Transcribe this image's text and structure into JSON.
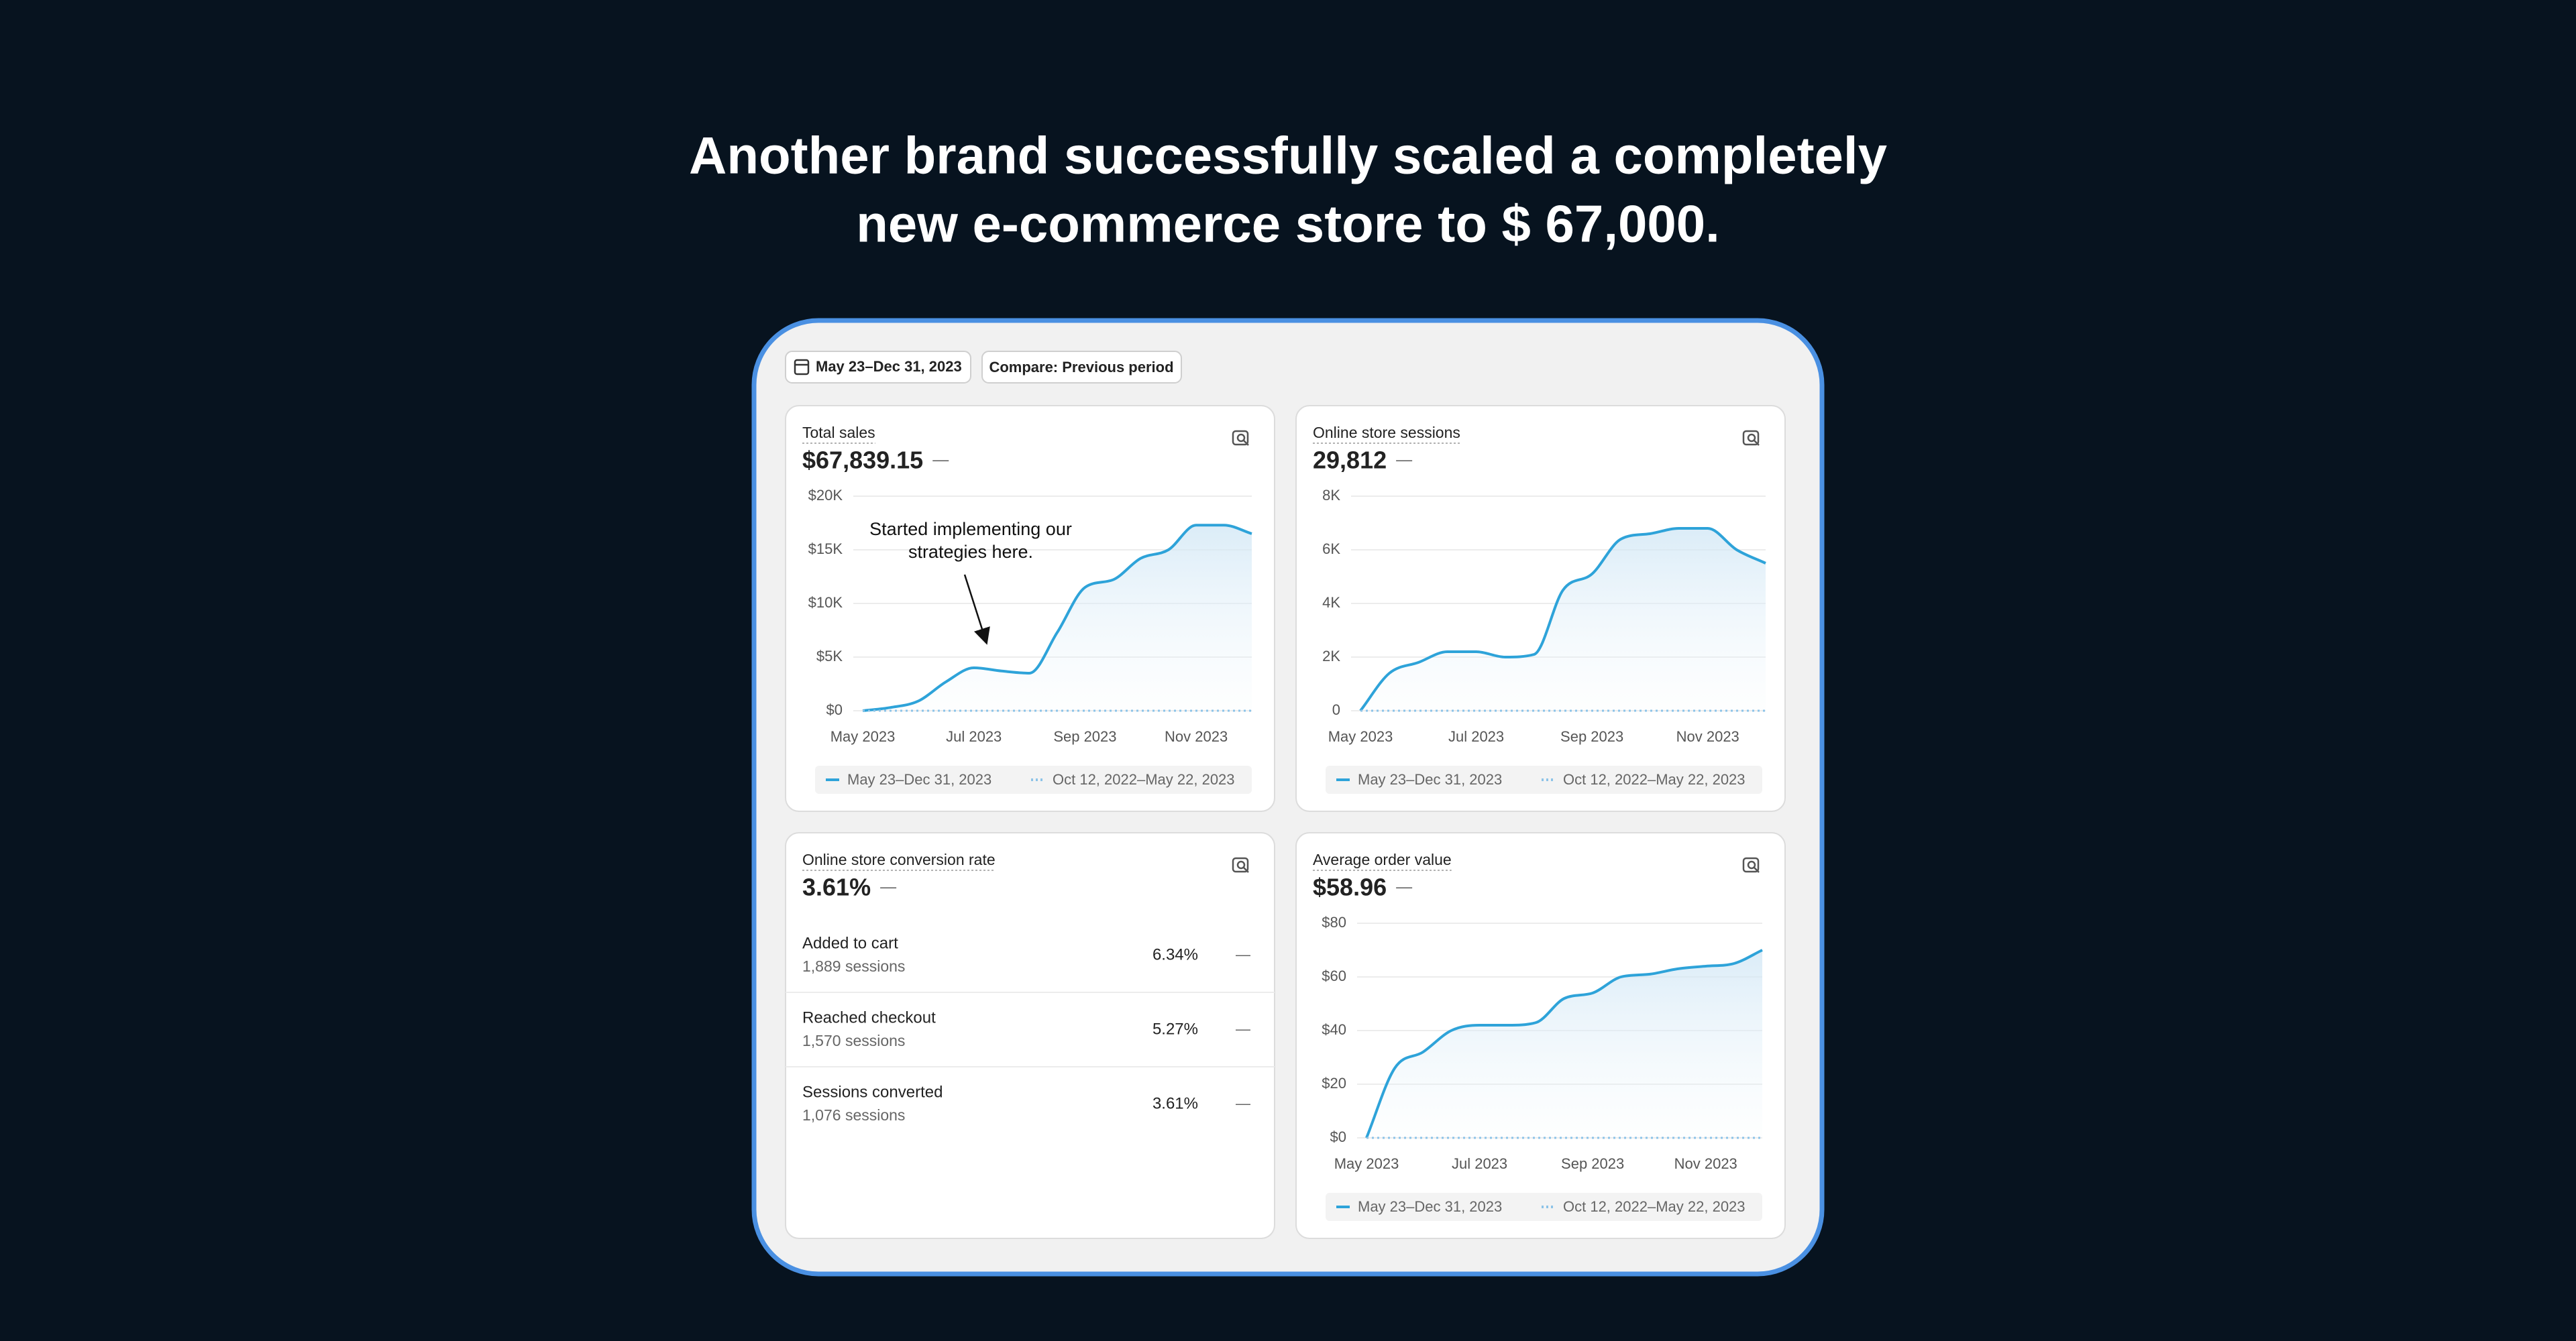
{
  "header": {
    "title_lines": [
      "Another brand successfully scaled a completely",
      "new e-commerce store to $ 67,000."
    ]
  },
  "toolbar": {
    "date_range": "May 23–Dec 31, 2023",
    "compare": "Compare: Previous period"
  },
  "conversion": {
    "title": "Online store conversion rate",
    "value": "3.61%",
    "change": "—",
    "rows": [
      {
        "label": "Added to cart",
        "sessions": "1,889 sessions",
        "rate": "6.34%",
        "change": "—"
      },
      {
        "label": "Reached checkout",
        "sessions": "1,570 sessions",
        "rate": "5.27%",
        "change": "—"
      },
      {
        "label": "Sessions converted",
        "sessions": "1,076 sessions",
        "rate": "3.61%",
        "change": "—"
      }
    ]
  },
  "chart_data": [
    {
      "type": "line",
      "title": "Total sales",
      "kpi": "$67,839.15",
      "change": "—",
      "annotation": [
        "Started implementing our",
        "strategies here."
      ],
      "categories": [
        "May 2023",
        null,
        null,
        null,
        "Jul 2023",
        null,
        null,
        null,
        "Sep 2023",
        null,
        null,
        null,
        "Nov 2023",
        null,
        null
      ],
      "series": [
        {
          "name": "May 23–Dec 31, 2023",
          "color": "#2ea3d9",
          "values": [
            0,
            300,
            900,
            2700,
            4000,
            3700,
            3500,
            7300,
            11500,
            12200,
            14200,
            15000,
            17300,
            17300,
            16500
          ]
        },
        {
          "name": "Oct 12, 2022–May 22, 2023",
          "color": "#8cc3e8",
          "dotted": true,
          "values": [
            0,
            0,
            0,
            0,
            0,
            0,
            0,
            0,
            0,
            0,
            0,
            0,
            0,
            0,
            0
          ]
        }
      ],
      "ylim": [
        0,
        20000
      ],
      "yticks": [
        {
          "value": 0,
          "label": "$0"
        },
        {
          "value": 5000,
          "label": "$5K"
        },
        {
          "value": 10000,
          "label": "$10K"
        },
        {
          "value": 15000,
          "label": "$15K"
        },
        {
          "value": 20000,
          "label": "$20K"
        }
      ],
      "grid": true
    },
    {
      "type": "line",
      "title": "Online store sessions",
      "kpi": "29,812",
      "change": "—",
      "categories": [
        "May 2023",
        null,
        null,
        null,
        "Jul 2023",
        null,
        null,
        null,
        "Sep 2023",
        null,
        null,
        null,
        "Nov 2023",
        null,
        null
      ],
      "series": [
        {
          "name": "May 23–Dec 31, 2023",
          "color": "#2ea3d9",
          "values": [
            0,
            1400,
            1800,
            2200,
            2200,
            2000,
            2100,
            4500,
            5100,
            6400,
            6600,
            6800,
            6800,
            6000,
            5500
          ]
        },
        {
          "name": "Oct 12, 2022–May 22, 2023",
          "color": "#8cc3e8",
          "dotted": true,
          "values": [
            0,
            0,
            0,
            0,
            0,
            0,
            0,
            0,
            0,
            0,
            0,
            0,
            0,
            0,
            0
          ]
        }
      ],
      "ylim": [
        0,
        8000
      ],
      "yticks": [
        0,
        {
          "value": 2000,
          "label": "2K"
        },
        {
          "value": 4000,
          "label": "4K"
        },
        {
          "value": 6000,
          "label": "6K"
        },
        {
          "value": 8000,
          "label": "8K"
        }
      ],
      "grid": true
    },
    {
      "type": "line",
      "title": "Average order value",
      "kpi": "$58.96",
      "change": "—",
      "categories": [
        "May 2023",
        null,
        null,
        null,
        "Jul 2023",
        null,
        null,
        null,
        "Sep 2023",
        null,
        null,
        null,
        "Nov 2023",
        null,
        null
      ],
      "series": [
        {
          "name": "May 23–Dec 31, 2023",
          "color": "#2ea3d9",
          "values": [
            0,
            26,
            32,
            40,
            42,
            42,
            43,
            52,
            54,
            60,
            61,
            63,
            64,
            65,
            70
          ]
        },
        {
          "name": "Oct 12, 2022–May 22, 2023",
          "color": "#8cc3e8",
          "dotted": true,
          "values": [
            0,
            0,
            0,
            0,
            0,
            0,
            0,
            0,
            0,
            0,
            0,
            0,
            0,
            0,
            0
          ]
        }
      ],
      "ylim": [
        0,
        80
      ],
      "yticks": [
        {
          "value": 0,
          "label": "$0"
        },
        {
          "value": 20,
          "label": "$20"
        },
        {
          "value": 40,
          "label": "$40"
        },
        {
          "value": 60,
          "label": "$60"
        },
        {
          "value": 80,
          "label": "$80"
        }
      ],
      "grid": true
    }
  ]
}
